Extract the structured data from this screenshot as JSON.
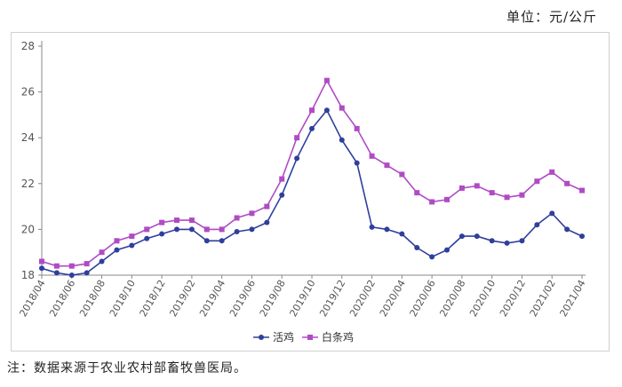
{
  "unit_label": "单位：元/公斤",
  "note": "注：数据来源于农业农村部畜牧兽医局。",
  "chart_data": {
    "type": "line",
    "title": "",
    "xlabel": "",
    "ylabel": "",
    "ylim": [
      18,
      28
    ],
    "yticks": [
      18,
      20,
      22,
      24,
      26,
      28
    ],
    "x_tick_labels": [
      "2018/04",
      "2018/06",
      "2018/08",
      "2018/10",
      "2018/12",
      "2019/02",
      "2019/04",
      "2019/06",
      "2019/08",
      "2019/10",
      "2019/12",
      "2020/02",
      "2020/04",
      "2020/06",
      "2020/08",
      "2020/10",
      "2020/12",
      "2021/02",
      "2021/04"
    ],
    "x": [
      "2018/04",
      "2018/05",
      "2018/06",
      "2018/07",
      "2018/08",
      "2018/09",
      "2018/10",
      "2018/11",
      "2018/12",
      "2019/01",
      "2019/02",
      "2019/03",
      "2019/04",
      "2019/05",
      "2019/06",
      "2019/07",
      "2019/08",
      "2019/09",
      "2019/10",
      "2019/11",
      "2019/12",
      "2020/01",
      "2020/02",
      "2020/03",
      "2020/04",
      "2020/05",
      "2020/06",
      "2020/07",
      "2020/08",
      "2020/09",
      "2020/10",
      "2020/11",
      "2020/12",
      "2021/01",
      "2021/02",
      "2021/03",
      "2021/04"
    ],
    "legend_position": "bottom",
    "series": [
      {
        "name": "活鸡",
        "color": "#2e3f9c",
        "marker": "circle",
        "values": [
          18.3,
          18.1,
          18.0,
          18.1,
          18.6,
          19.1,
          19.3,
          19.6,
          19.8,
          20.0,
          20.0,
          19.5,
          19.5,
          19.9,
          20.0,
          20.3,
          21.5,
          23.1,
          24.4,
          25.2,
          23.9,
          22.9,
          20.1,
          20.0,
          19.8,
          19.2,
          18.8,
          19.1,
          19.7,
          19.7,
          19.5,
          19.4,
          19.5,
          20.2,
          20.7,
          20.0,
          19.7
        ]
      },
      {
        "name": "白条鸡",
        "color": "#b04bc4",
        "marker": "square",
        "values": [
          18.6,
          18.4,
          18.4,
          18.5,
          19.0,
          19.5,
          19.7,
          20.0,
          20.3,
          20.4,
          20.4,
          20.0,
          20.0,
          20.5,
          20.7,
          21.0,
          22.2,
          24.0,
          25.2,
          26.5,
          25.3,
          24.4,
          23.2,
          22.8,
          22.4,
          21.6,
          21.2,
          21.3,
          21.8,
          21.9,
          21.6,
          21.4,
          21.5,
          22.1,
          22.5,
          22.0,
          21.7
        ]
      }
    ]
  }
}
